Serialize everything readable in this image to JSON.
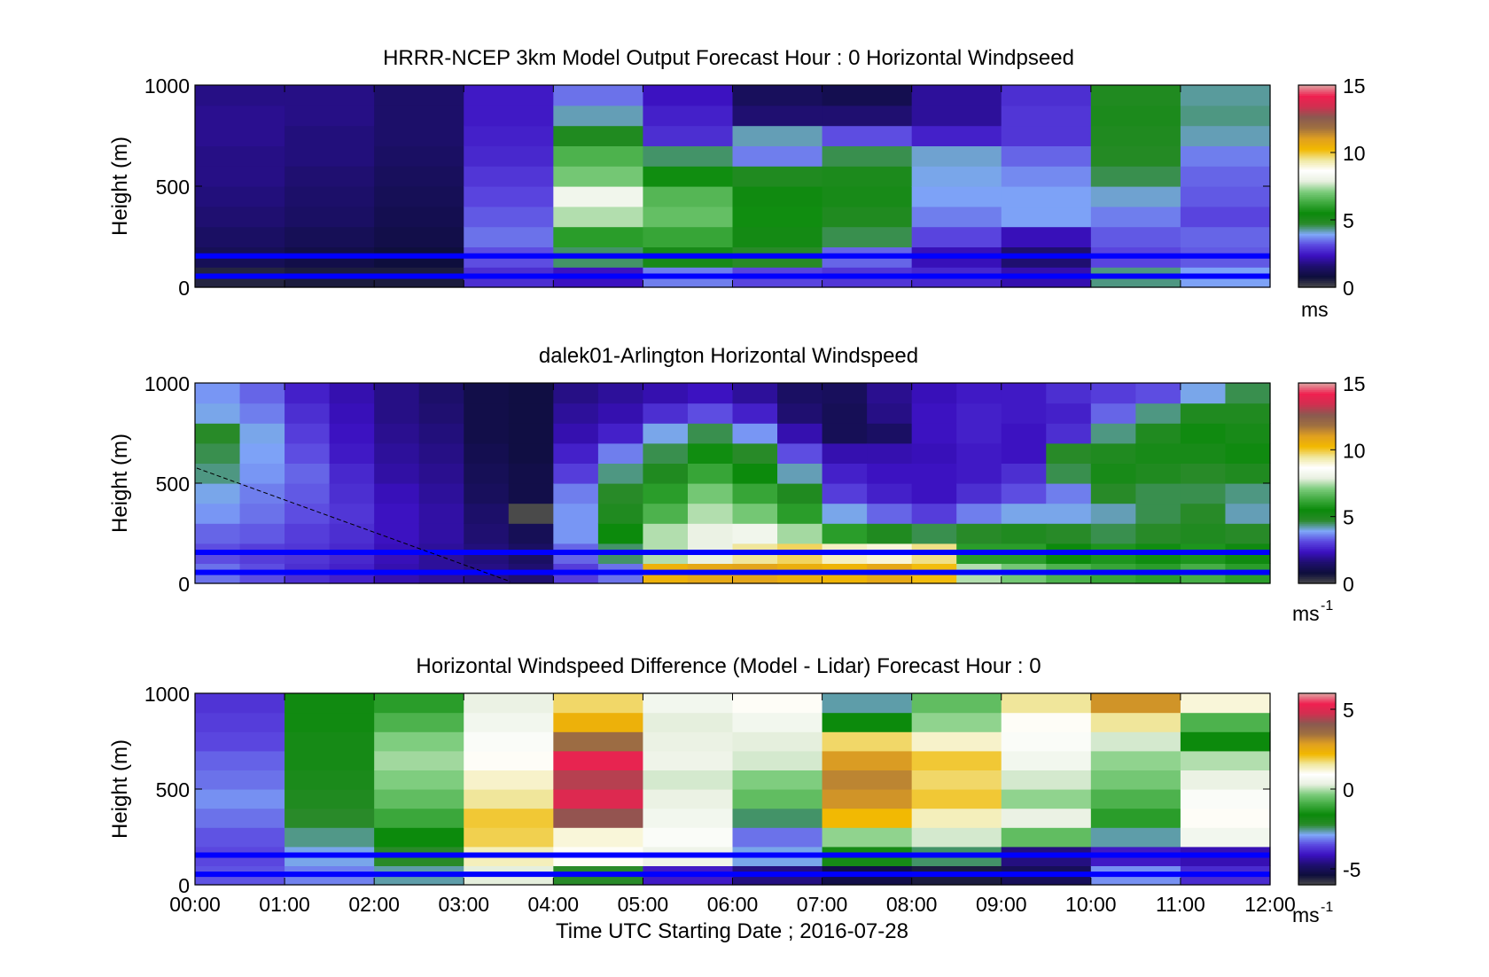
{
  "figure": {
    "xlabel": "Time UTC  Starting Date ; 2016-07-28",
    "x_ticks": [
      "00:00",
      "01:00",
      "02:00",
      "03:00",
      "04:00",
      "05:00",
      "06:00",
      "07:00",
      "08:00",
      "09:00",
      "10:00",
      "11:00",
      "12:00"
    ]
  },
  "colors": {
    "colormap": [
      "#4a4a4a",
      "#0e0e3c",
      "#1e0f6e",
      "#3b10c0",
      "#5b48e0",
      "#7fa8f8",
      "#2a8a2a",
      "#0b8a0b",
      "#3faa3f",
      "#7ccc7c",
      "#e8f0e0",
      "#ffffff",
      "#f0e8a0",
      "#f2b800",
      "#e0a020",
      "#a07040",
      "#8a5a50",
      "#d03050",
      "#f02050",
      "#e0a0a0"
    ],
    "ref_line": "#0000ff"
  },
  "chart_data": [
    {
      "type": "heatmap",
      "title": "HRRR-NCEP 3km Model Output   Forecast Hour : 0 Horizontal Windpseed",
      "ylabel": "Height (m)",
      "xlim": [
        0,
        12
      ],
      "ylim": [
        0,
        1000
      ],
      "y_ticks": [
        "0",
        "500",
        "1000"
      ],
      "colorbar": {
        "ticks": [
          "0",
          "5",
          "10",
          "15"
        ],
        "range": [
          0,
          15
        ],
        "unit": "ms"
      },
      "reference_lines_m": [
        55,
        155
      ],
      "hours": [
        0,
        1,
        2,
        3,
        4,
        5,
        6,
        7,
        8,
        9,
        10,
        11
      ],
      "heights_m": [
        0,
        100,
        200,
        300,
        400,
        500,
        600,
        700,
        800,
        900,
        1000
      ],
      "values": [
        [
          0.5,
          1.2,
          1.4,
          1.6,
          1.7,
          1.8,
          1.8,
          1.9,
          1.9,
          1.8
        ],
        [
          0.6,
          1.0,
          1.2,
          1.4,
          1.5,
          1.6,
          1.7,
          1.7,
          1.8,
          1.8
        ],
        [
          0.6,
          0.8,
          1.0,
          1.1,
          1.2,
          1.3,
          1.4,
          1.5,
          1.5,
          1.5
        ],
        [
          2.8,
          3.2,
          3.5,
          3.3,
          3.1,
          2.9,
          2.7,
          2.6,
          2.5,
          2.5
        ],
        [
          2.4,
          4.5,
          6.0,
          7.5,
          8.2,
          7.0,
          6.5,
          5.0,
          4.2,
          3.5
        ],
        [
          3.6,
          5.2,
          6.2,
          6.8,
          6.6,
          5.6,
          4.5,
          2.8,
          2.6,
          2.4
        ],
        [
          3.1,
          4.8,
          5.3,
          5.6,
          5.4,
          5.0,
          3.6,
          4.2,
          1.6,
          1.3
        ],
        [
          2.9,
          3.4,
          4.6,
          5.0,
          5.2,
          5.1,
          4.6,
          3.2,
          1.6,
          1.1
        ],
        [
          2.7,
          2.3,
          3.1,
          3.6,
          3.9,
          4.0,
          4.1,
          2.6,
          2.0,
          2.0
        ],
        [
          2.2,
          1.6,
          2.3,
          3.9,
          3.9,
          3.7,
          3.4,
          2.9,
          2.9,
          2.8
        ],
        [
          4.4,
          3.1,
          3.3,
          3.6,
          4.1,
          4.6,
          4.9,
          5.0,
          5.1,
          5.0
        ],
        [
          3.9,
          3.3,
          3.4,
          3.1,
          3.3,
          3.4,
          3.6,
          4.2,
          4.4,
          4.3
        ]
      ]
    },
    {
      "type": "heatmap",
      "title": "dalek01-Arlington  Horizontal Windspeed",
      "ylabel": "Height (m)",
      "xlim": [
        0,
        12
      ],
      "ylim": [
        0,
        1000
      ],
      "y_ticks": [
        "0",
        "500",
        "1000"
      ],
      "colorbar": {
        "ticks": [
          "0",
          "5",
          "10",
          "15"
        ],
        "range": [
          0,
          15
        ],
        "unit": "ms",
        "unit_exponent": "-1"
      },
      "reference_lines_m": [
        55,
        155
      ],
      "hours": [
        0,
        0.5,
        1,
        1.5,
        2,
        2.5,
        3,
        3.5,
        4,
        4.5,
        5,
        5.5,
        6,
        6.5,
        7,
        7.5,
        8,
        8.5,
        9,
        9.5,
        10,
        10.5,
        11,
        11.5
      ],
      "heights_m": [
        0,
        100,
        200,
        300,
        400,
        500,
        600,
        700,
        800,
        900,
        1000
      ],
      "values": [
        [
          3.5,
          3.2,
          3.4,
          3.8,
          4.0,
          4.4,
          4.6,
          4.8,
          4.0,
          3.8
        ],
        [
          3.2,
          3.0,
          3.3,
          3.5,
          3.6,
          3.8,
          3.9,
          4.0,
          3.6,
          3.4
        ],
        [
          2.8,
          2.9,
          3.0,
          3.2,
          3.3,
          3.4,
          3.2,
          3.0,
          2.8,
          2.6
        ],
        [
          2.6,
          2.7,
          2.8,
          2.9,
          2.8,
          2.7,
          2.5,
          2.4,
          2.3,
          2.2
        ],
        [
          2.2,
          2.3,
          2.4,
          2.4,
          2.3,
          2.1,
          2.0,
          1.9,
          1.8,
          1.8
        ],
        [
          2.0,
          2.0,
          2.1,
          2.1,
          2.0,
          1.9,
          1.8,
          1.7,
          1.6,
          1.5
        ],
        [
          1.8,
          1.7,
          1.6,
          1.5,
          1.3,
          1.2,
          1.1,
          1.0,
          1.0,
          1.0
        ],
        [
          1.6,
          1.4,
          1.2,
          0.0,
          1.0,
          1.0,
          0.9,
          0.9,
          0.9,
          0.9
        ],
        [
          3.0,
          3.4,
          3.8,
          3.8,
          3.6,
          3.0,
          2.6,
          2.2,
          2.0,
          1.8
        ],
        [
          3.5,
          4.5,
          5.5,
          5.0,
          4.8,
          4.4,
          3.6,
          2.6,
          2.2,
          2.0
        ],
        [
          10.5,
          7.5,
          7.5,
          6.5,
          6.0,
          5.0,
          4.6,
          4.0,
          2.8,
          2.2
        ],
        [
          10.8,
          8.0,
          8.0,
          7.5,
          7.0,
          6.2,
          5.6,
          4.6,
          3.2,
          2.4
        ],
        [
          10.9,
          9.5,
          8.2,
          7.0,
          6.2,
          5.5,
          4.8,
          3.8,
          2.6,
          2.0
        ],
        [
          10.6,
          9.8,
          7.4,
          6.0,
          5.0,
          4.2,
          3.2,
          2.2,
          1.6,
          1.4
        ],
        [
          10.4,
          9.2,
          6.0,
          4.0,
          3.0,
          2.6,
          2.2,
          1.2,
          1.2,
          1.3
        ],
        [
          10.8,
          9.0,
          5.0,
          3.4,
          2.6,
          2.4,
          2.2,
          1.4,
          1.8,
          1.9
        ],
        [
          10.2,
          9.6,
          4.6,
          3.0,
          2.4,
          2.4,
          2.3,
          2.4,
          2.4,
          2.3
        ],
        [
          7.5,
          6.0,
          4.8,
          3.6,
          2.8,
          2.5,
          2.5,
          2.6,
          2.6,
          2.5
        ],
        [
          7.0,
          6.0,
          5.0,
          4.0,
          3.2,
          2.8,
          2.4,
          2.4,
          2.5,
          2.5
        ],
        [
          6.5,
          5.5,
          4.8,
          4.0,
          3.6,
          4.6,
          4.8,
          2.8,
          2.6,
          2.8
        ],
        [
          6.2,
          5.8,
          4.6,
          4.2,
          4.8,
          5.2,
          5.0,
          4.4,
          3.4,
          3.0
        ],
        [
          6.0,
          5.6,
          4.8,
          4.6,
          4.6,
          5.0,
          5.2,
          5.0,
          4.4,
          3.2
        ],
        [
          6.4,
          5.8,
          5.0,
          4.8,
          4.6,
          4.8,
          5.2,
          5.4,
          5.0,
          4.0
        ],
        [
          6.0,
          5.4,
          4.8,
          4.2,
          4.4,
          5.0,
          5.4,
          5.2,
          5.0,
          4.6
        ]
      ]
    },
    {
      "type": "heatmap",
      "title": "Horizontal Windspeed Difference (Model - Lidar) Forecast Hour : 0",
      "ylabel": "Height (m)",
      "xlim": [
        0,
        12
      ],
      "ylim": [
        0,
        1000
      ],
      "y_ticks": [
        "0",
        "500",
        "1000"
      ],
      "colorbar": {
        "ticks": [
          "-5",
          "0",
          "5"
        ],
        "range": [
          -6,
          6
        ],
        "unit": "ms",
        "unit_exponent": "-1"
      },
      "reference_lines_m": [
        55,
        155
      ],
      "hours": [
        0,
        1,
        2,
        3,
        4,
        5,
        6,
        7,
        8,
        9,
        10,
        11
      ],
      "heights_m": [
        0,
        100,
        200,
        300,
        400,
        500,
        600,
        700,
        800,
        900,
        1000
      ],
      "values": [
        [
          -3.4,
          -3.5,
          -3.4,
          -3.2,
          -3.0,
          -3.2,
          -3.3,
          -3.5,
          -3.6,
          -3.7
        ],
        [
          -3.1,
          -2.8,
          -2.5,
          -2.2,
          -2.0,
          -1.9,
          -1.8,
          -1.8,
          -1.7,
          -1.7
        ],
        [
          -2.6,
          -2.2,
          -1.6,
          -1.0,
          -0.6,
          -0.3,
          -0.1,
          -0.3,
          -0.8,
          -1.2
        ],
        [
          0.3,
          1.4,
          1.9,
          2.0,
          1.6,
          1.3,
          1.0,
          0.8,
          0.6,
          0.4
        ],
        [
          -2.2,
          1.0,
          1.2,
          4.2,
          5.0,
          4.5,
          5.2,
          3.6,
          2.4,
          1.8
        ],
        [
          -4.0,
          0.5,
          0.8,
          0.6,
          0.4,
          0.2,
          0.5,
          0.4,
          0.3,
          0.6
        ],
        [
          -4.6,
          -2.8,
          -3.2,
          -2.4,
          -0.6,
          -0.3,
          0.2,
          0.3,
          0.6,
          1.0
        ],
        [
          -5.2,
          -1.8,
          -0.2,
          2.2,
          3.0,
          3.2,
          2.9,
          1.8,
          -1.6,
          -2.6
        ],
        [
          -5.5,
          -2.4,
          0.2,
          1.4,
          2.0,
          1.8,
          2.0,
          1.3,
          -0.2,
          -0.6
        ],
        [
          -5.0,
          -4.6,
          -0.6,
          0.4,
          -0.2,
          0.2,
          0.6,
          0.8,
          1.0,
          1.6
        ],
        [
          -3.0,
          -4.0,
          -2.6,
          -1.2,
          -0.8,
          -0.4,
          -0.2,
          0.2,
          1.6,
          3.0
        ],
        [
          -3.8,
          -4.2,
          0.6,
          1.0,
          0.8,
          0.4,
          0.0,
          -1.6,
          -0.8,
          1.2
        ]
      ]
    }
  ]
}
